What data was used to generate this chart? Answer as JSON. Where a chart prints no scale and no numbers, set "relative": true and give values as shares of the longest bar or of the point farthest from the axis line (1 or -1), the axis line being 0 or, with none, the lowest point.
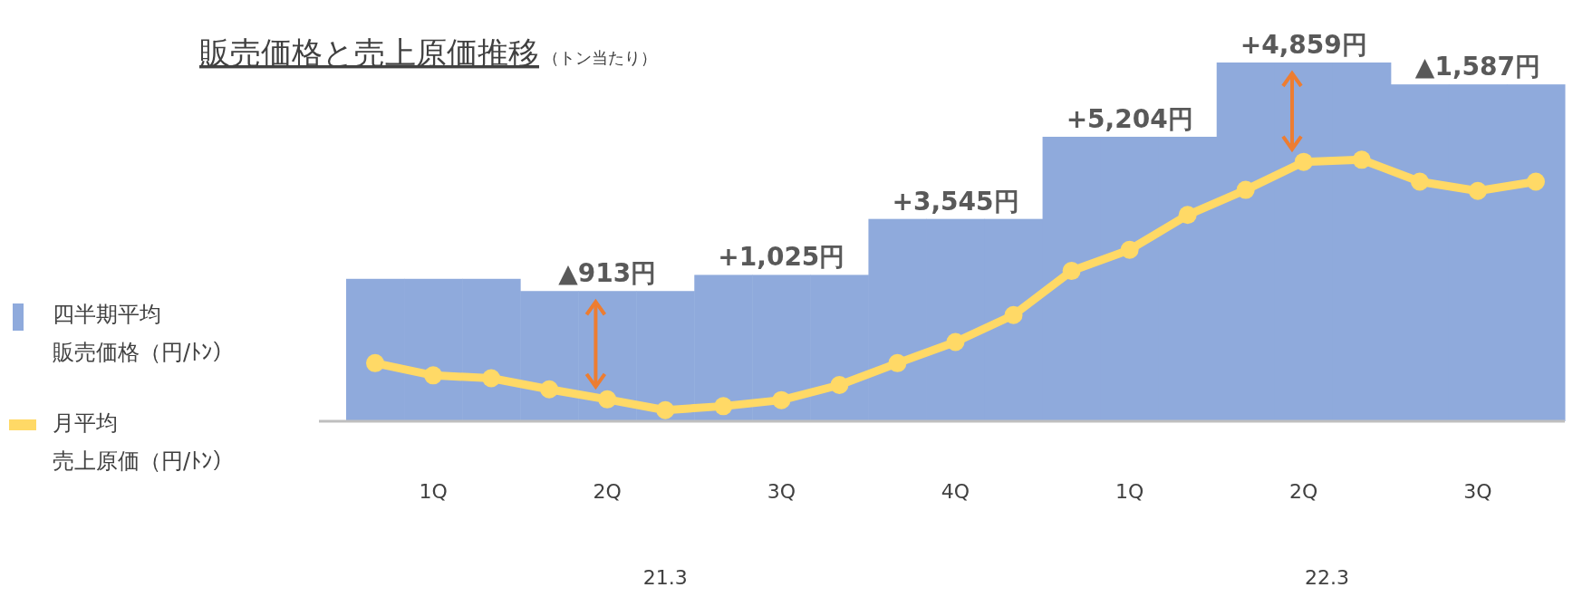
{
  "chart_data": {
    "type": "bar",
    "relative": true,
    "title": "販売価格と売上原価推移",
    "subtitle": "（トン当たり）",
    "categories": [
      null,
      "1Q",
      null,
      null,
      "2Q",
      null,
      null,
      "3Q",
      null,
      null,
      "4Q",
      null,
      null,
      "1Q",
      null,
      null,
      "2Q",
      null,
      null,
      "3Q",
      null
    ],
    "legend": "left",
    "annotations": [
      "▲913円",
      "+1,025円",
      "+3,545円",
      "+5,204円",
      "+4,859円",
      "▲1,587円",
      "21.3",
      "22.3"
    ],
    "series": [
      {
        "name": "四半期平均販売価格（円/ﾄﾝ）",
        "color": "#8faadc",
        "values": [
          0.397,
          0.397,
          0.397,
          0.363,
          0.363,
          0.363,
          0.408,
          0.408,
          0.408,
          0.564,
          0.564,
          0.564,
          0.793,
          0.793,
          0.793,
          1,
          1,
          1,
          0.939,
          0.939,
          0.939
        ]
      },
      {
        "name": "月平均売上原価（円/ﾄﾝ）",
        "type": "line",
        "color": "#ffd966",
        "marker": "circle",
        "values": [
          0.162,
          0.128,
          0.12,
          0.089,
          0.061,
          0.031,
          0.042,
          0.059,
          0.101,
          0.162,
          0.221,
          0.296,
          0.419,
          0.478,
          0.575,
          0.645,
          0.723,
          0.729,
          0.668,
          0.642,
          0.668
        ]
      }
    ]
  }
}
